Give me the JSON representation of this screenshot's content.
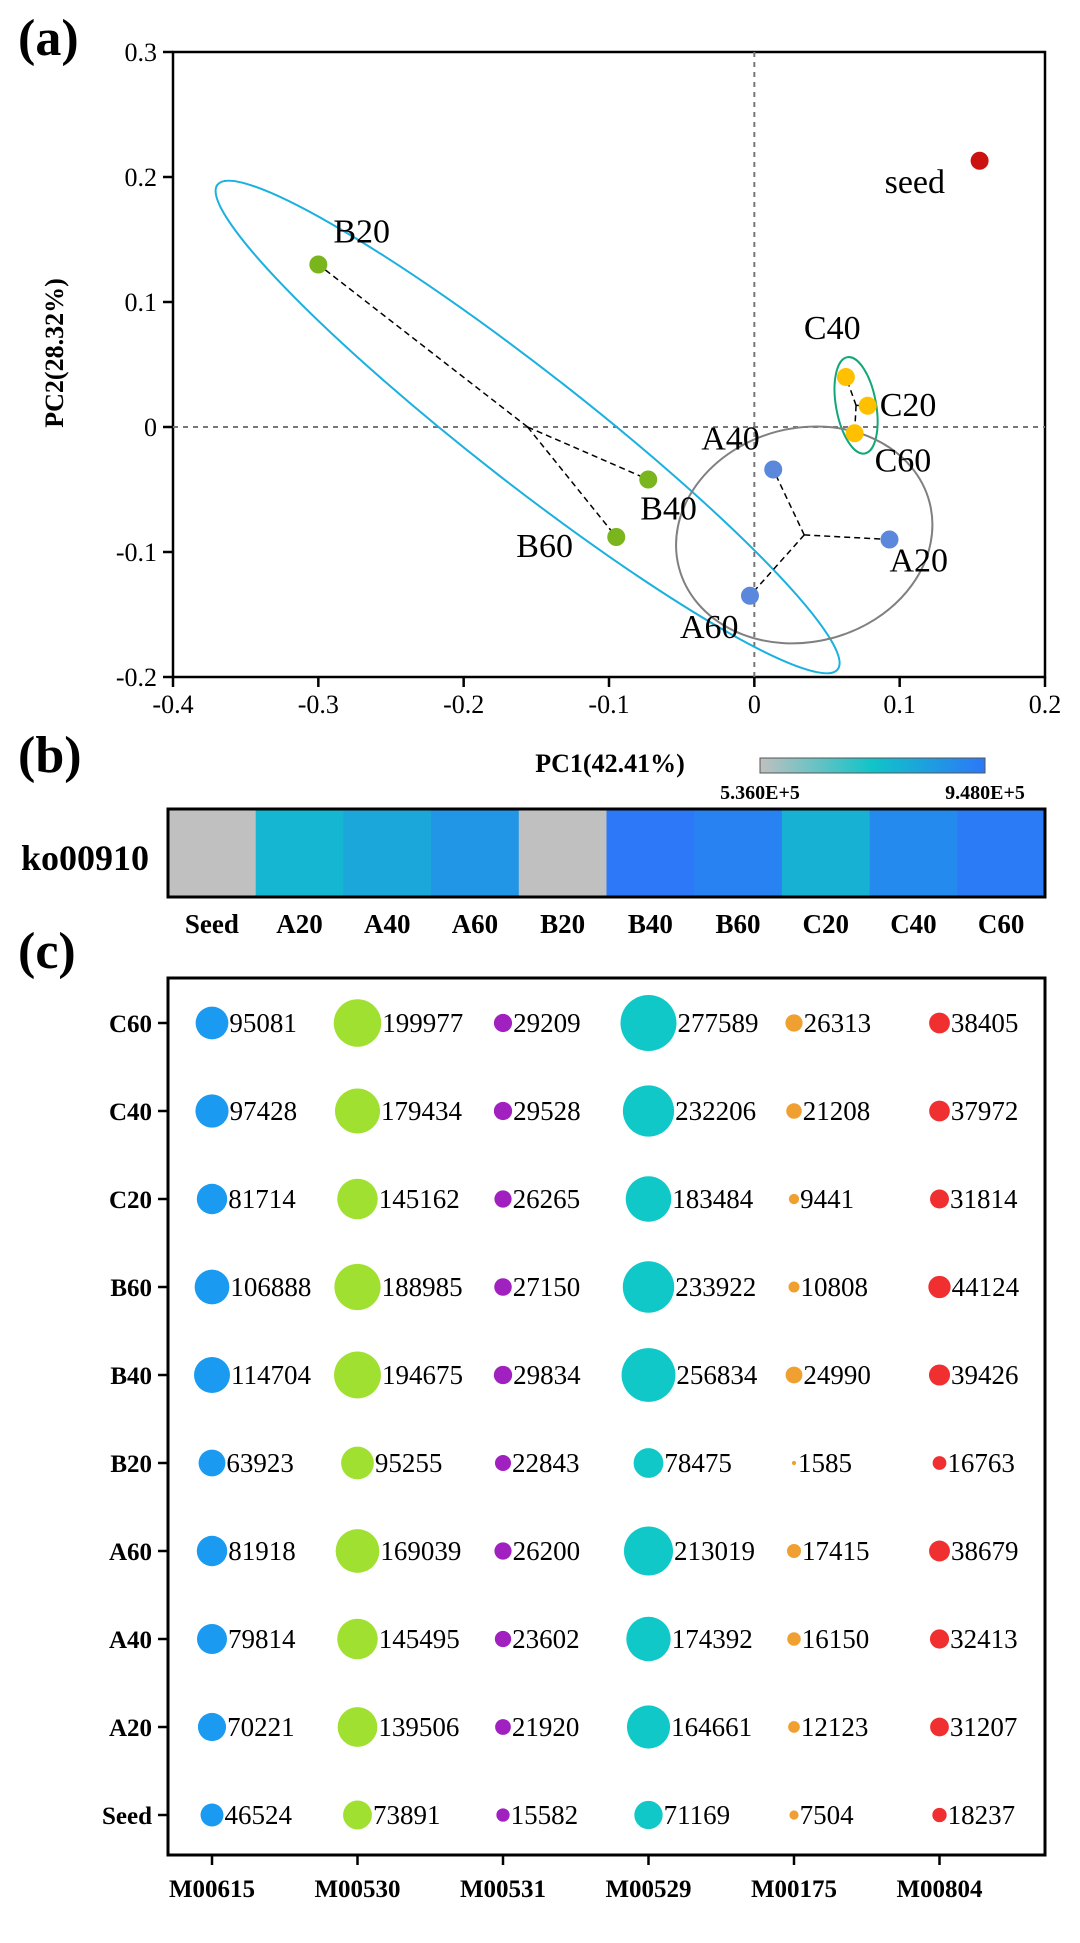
{
  "chart_data": [
    {
      "panel": "(a)",
      "type": "scatter",
      "xlabel": "PC1(42.41%)",
      "ylabel": "PC2(28.32%)",
      "xlim": [
        -0.4,
        0.2
      ],
      "ylim": [
        -0.2,
        0.3
      ],
      "x_ticks": [
        "-0.4",
        "-0.3",
        "-0.2",
        "-0.1",
        "0",
        "0.1",
        "0.2"
      ],
      "y_ticks": [
        "-0.2",
        "-0.1",
        "0",
        "0.1",
        "0.2",
        "0.3"
      ],
      "reference_lines": {
        "x": 0,
        "y": 0
      },
      "points": [
        {
          "label": "seed",
          "x": 0.155,
          "y": 0.213,
          "group": "Seed",
          "color": "#cc1111"
        },
        {
          "label": "B20",
          "x": -0.3,
          "y": 0.13,
          "group": "B",
          "color": "#7ab51d"
        },
        {
          "label": "B40",
          "x": -0.073,
          "y": -0.042,
          "group": "B",
          "color": "#7ab51d"
        },
        {
          "label": "B60",
          "x": -0.095,
          "y": -0.088,
          "group": "B",
          "color": "#7ab51d"
        },
        {
          "label": "C40",
          "x": 0.063,
          "y": 0.04,
          "group": "C",
          "color": "#ffc000"
        },
        {
          "label": "C20",
          "x": 0.078,
          "y": 0.017,
          "group": "C",
          "color": "#ffc000"
        },
        {
          "label": "C60",
          "x": 0.069,
          "y": -0.005,
          "group": "C",
          "color": "#ffc000"
        },
        {
          "label": "A40",
          "x": 0.013,
          "y": -0.034,
          "group": "A",
          "color": "#5b87dc"
        },
        {
          "label": "A20",
          "x": 0.093,
          "y": -0.09,
          "group": "A",
          "color": "#5b87dc"
        },
        {
          "label": "A60",
          "x": -0.003,
          "y": -0.135,
          "group": "A",
          "color": "#5b87dc"
        }
      ],
      "group_colors": {
        "A": "#808080",
        "B": "#1ab0e0",
        "C": "#10a878"
      }
    },
    {
      "panel": "(b)",
      "type": "heatmap",
      "row_label": "ko00910",
      "categories": [
        "Seed",
        "A20",
        "A40",
        "A60",
        "B20",
        "B40",
        "B60",
        "C20",
        "C40",
        "C60"
      ],
      "values": [
        536000,
        780000,
        820000,
        870000,
        536000,
        948000,
        920000,
        790000,
        900000,
        940000
      ],
      "colorbar": {
        "min_label": "5.360E+5",
        "max_label": "9.480E+5",
        "min": 536000,
        "max": 948000,
        "colors": [
          "#c0c0c0",
          "#10c4c8",
          "#2c78f8"
        ]
      }
    },
    {
      "panel": "(c)",
      "type": "bubble",
      "x_categories": [
        "M00615",
        "M00530",
        "M00531",
        "M00529",
        "M00175",
        "M00804"
      ],
      "y_categories": [
        "C60",
        "C40",
        "C20",
        "B60",
        "B40",
        "B20",
        "A60",
        "A40",
        "A20",
        "Seed"
      ],
      "series_colors": [
        "#1a9af0",
        "#a0e030",
        "#a020c0",
        "#10c8c8",
        "#f0a030",
        "#f03030"
      ],
      "values": {
        "C60": [
          95081,
          199977,
          29209,
          277589,
          26313,
          38405
        ],
        "C40": [
          97428,
          179434,
          29528,
          232206,
          21208,
          37972
        ],
        "C20": [
          81714,
          145162,
          26265,
          183484,
          9441,
          31814
        ],
        "B60": [
          106888,
          188985,
          27150,
          233922,
          10808,
          44124
        ],
        "B40": [
          114704,
          194675,
          29834,
          256834,
          24990,
          39426
        ],
        "B20": [
          63923,
          95255,
          22843,
          78475,
          1585,
          16763
        ],
        "A60": [
          81918,
          169039,
          26200,
          213019,
          17415,
          38679
        ],
        "A40": [
          79814,
          145495,
          23602,
          174392,
          16150,
          32413
        ],
        "A20": [
          70221,
          139506,
          21920,
          164661,
          12123,
          31207
        ],
        "Seed": [
          46524,
          73891,
          15582,
          71169,
          7504,
          18237
        ]
      }
    }
  ]
}
